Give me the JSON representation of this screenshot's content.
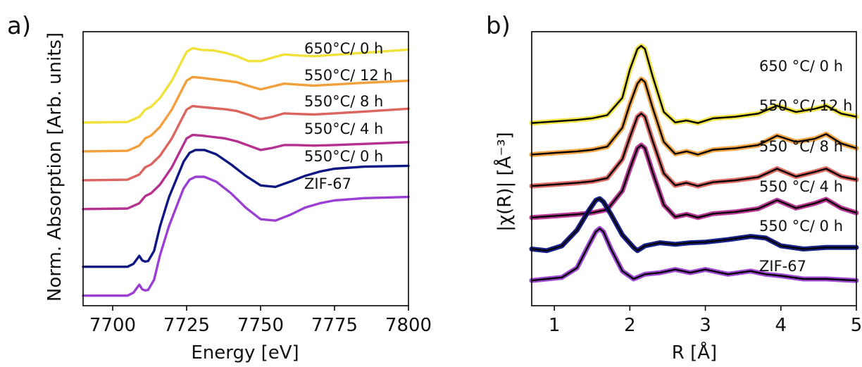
{
  "chart_data": [
    {
      "type": "line",
      "panel_label": "a)",
      "xlabel": "Energy [eV]",
      "ylabel": "Norm. Absorption [Arb. units]",
      "xlim": [
        7690,
        7800
      ],
      "x_ticks": [
        7700,
        7725,
        7750,
        7775,
        7800
      ],
      "y_ticks": [],
      "grid": false,
      "legend": "inline labels right of curves",
      "series": [
        {
          "name": "650°C/ 0 h",
          "color": "#f0e13b",
          "x": [
            7690,
            7705,
            7709,
            7711,
            7713,
            7716,
            7720,
            7723,
            7725,
            7727,
            7730,
            7734,
            7738,
            7742,
            7746,
            7750,
            7754,
            7758,
            7762,
            7768,
            7775,
            7785,
            7800
          ],
          "y": [
            5.0,
            5.02,
            5.2,
            5.45,
            5.55,
            5.85,
            6.45,
            7.05,
            7.45,
            7.58,
            7.52,
            7.5,
            7.42,
            7.3,
            7.13,
            7.13,
            7.25,
            7.36,
            7.33,
            7.3,
            7.35,
            7.42,
            7.53
          ]
        },
        {
          "name": "550°C/ 12 h",
          "color": "#f2a03b",
          "x": [
            7690,
            7705,
            7709,
            7711,
            7713,
            7716,
            7720,
            7723,
            7725,
            7727,
            7730,
            7734,
            7738,
            7742,
            7746,
            7750,
            7754,
            7758,
            7762,
            7768,
            7775,
            7785,
            7800
          ],
          "y": [
            4.0,
            4.02,
            4.2,
            4.45,
            4.55,
            4.85,
            5.45,
            6.05,
            6.45,
            6.58,
            6.55,
            6.5,
            6.45,
            6.4,
            6.27,
            6.15,
            6.25,
            6.35,
            6.32,
            6.28,
            6.32,
            6.38,
            6.45
          ]
        },
        {
          "name": "550°C/ 8 h",
          "color": "#dc6560",
          "x": [
            7690,
            7705,
            7709,
            7711,
            7713,
            7716,
            7720,
            7723,
            7725,
            7727,
            7730,
            7734,
            7738,
            7742,
            7746,
            7750,
            7754,
            7758,
            7762,
            7768,
            7775,
            7785,
            7800
          ],
          "y": [
            3.0,
            3.02,
            3.2,
            3.45,
            3.55,
            3.85,
            4.45,
            5.05,
            5.45,
            5.57,
            5.54,
            5.5,
            5.46,
            5.4,
            5.27,
            5.12,
            5.2,
            5.32,
            5.3,
            5.28,
            5.32,
            5.38,
            5.48
          ]
        },
        {
          "name": "550°C/ 4 h",
          "color": "#b5308f",
          "x": [
            7690,
            7705,
            7709,
            7711,
            7713,
            7716,
            7720,
            7723,
            7725,
            7727,
            7730,
            7734,
            7738,
            7742,
            7746,
            7750,
            7754,
            7758,
            7762,
            7768,
            7775,
            7785,
            7800
          ],
          "y": [
            2.0,
            2.02,
            2.2,
            2.45,
            2.55,
            2.85,
            3.45,
            4.05,
            4.45,
            4.57,
            4.55,
            4.5,
            4.45,
            4.35,
            4.2,
            4.05,
            4.12,
            4.22,
            4.22,
            4.2,
            4.22,
            4.26,
            4.32
          ]
        },
        {
          "name": "550°C/ 0 h",
          "color": "#0d1682",
          "x": [
            7690,
            7705,
            7707,
            7709,
            7710,
            7711,
            7712,
            7714,
            7716,
            7719,
            7722,
            7724,
            7726,
            7728,
            7731,
            7735,
            7740,
            7745,
            7750,
            7755,
            7760,
            7765,
            7770,
            7775,
            7785,
            7800
          ],
          "y": [
            0.0,
            0.0,
            0.1,
            0.38,
            0.22,
            0.18,
            0.2,
            0.55,
            1.4,
            2.4,
            3.15,
            3.65,
            3.95,
            4.05,
            4.05,
            3.9,
            3.55,
            3.15,
            2.82,
            2.77,
            2.95,
            3.15,
            3.3,
            3.4,
            3.47,
            3.5
          ]
        },
        {
          "name": "ZIF-67",
          "color": "#9a3fd1",
          "x": [
            7690,
            7705,
            7707,
            7709,
            7710,
            7711,
            7712,
            7714,
            7716,
            7719,
            7722,
            7724,
            7726,
            7728,
            7731,
            7735,
            7740,
            7745,
            7750,
            7755,
            7760,
            7765,
            7770,
            7775,
            7785,
            7800
          ],
          "y": [
            -1.0,
            -1.0,
            -0.9,
            -0.62,
            -0.78,
            -0.82,
            -0.8,
            -0.45,
            0.4,
            1.4,
            2.2,
            2.72,
            3.02,
            3.12,
            3.12,
            2.95,
            2.55,
            2.05,
            1.65,
            1.6,
            1.8,
            2.05,
            2.2,
            2.3,
            2.38,
            2.42
          ]
        }
      ]
    },
    {
      "type": "line",
      "panel_label": "b)",
      "xlabel": "R [Å]",
      "ylabel": "|χ(R)| [Å⁻³]",
      "xlim": [
        0.7,
        5
      ],
      "x_ticks": [
        1,
        2,
        3,
        4,
        5
      ],
      "y_ticks": [],
      "grid": false,
      "legend": "inline labels above curves",
      "fit_color": "#000000",
      "series": [
        {
          "name": "650 °C/ 0 h",
          "color": "#f0e13b",
          "x": [
            0.7,
            1.0,
            1.3,
            1.5,
            1.7,
            1.9,
            2.0,
            2.1,
            2.15,
            2.2,
            2.3,
            2.45,
            2.6,
            2.75,
            2.9,
            3.1,
            3.4,
            3.7,
            3.95,
            4.2,
            4.45,
            4.6,
            4.8,
            5.0
          ],
          "y": [
            5.0,
            5.05,
            5.1,
            5.15,
            5.25,
            5.8,
            6.7,
            7.35,
            7.45,
            7.35,
            6.5,
            5.35,
            5.02,
            5.08,
            5.0,
            5.15,
            5.2,
            5.3,
            5.55,
            5.35,
            5.45,
            5.55,
            5.3,
            5.2
          ]
        },
        {
          "name": "550 °C/ 12 h",
          "color": "#f2a03b",
          "x": [
            0.7,
            1.0,
            1.3,
            1.5,
            1.7,
            1.9,
            2.0,
            2.1,
            2.15,
            2.2,
            2.3,
            2.45,
            2.6,
            2.75,
            2.9,
            3.1,
            3.4,
            3.7,
            3.95,
            4.2,
            4.45,
            4.6,
            4.8,
            5.0
          ],
          "y": [
            4.0,
            4.05,
            4.1,
            4.15,
            4.25,
            4.85,
            5.6,
            6.25,
            6.4,
            6.3,
            5.5,
            4.4,
            4.02,
            4.1,
            4.0,
            4.15,
            4.2,
            4.3,
            4.6,
            4.4,
            4.5,
            4.65,
            4.35,
            4.2
          ]
        },
        {
          "name": "550 °C/ 8 h",
          "color": "#dc6560",
          "x": [
            0.7,
            1.0,
            1.3,
            1.5,
            1.7,
            1.9,
            2.0,
            2.1,
            2.15,
            2.2,
            2.3,
            2.45,
            2.6,
            2.75,
            2.9,
            3.1,
            3.4,
            3.7,
            3.95,
            4.2,
            4.45,
            4.6,
            4.8,
            5.0
          ],
          "y": [
            3.0,
            3.05,
            3.1,
            3.15,
            3.25,
            3.85,
            4.55,
            5.2,
            5.3,
            5.2,
            4.45,
            3.4,
            3.02,
            3.1,
            3.0,
            3.12,
            3.18,
            3.28,
            3.55,
            3.3,
            3.45,
            3.55,
            3.3,
            3.2
          ]
        },
        {
          "name": "550 °C/ 4 h",
          "color": "#b5308f",
          "x": [
            0.7,
            1.0,
            1.3,
            1.5,
            1.7,
            1.9,
            2.0,
            2.1,
            2.15,
            2.2,
            2.3,
            2.45,
            2.6,
            2.75,
            2.9,
            3.1,
            3.4,
            3.7,
            3.95,
            4.2,
            4.45,
            4.6,
            4.8,
            5.0
          ],
          "y": [
            2.0,
            2.05,
            2.1,
            2.15,
            2.25,
            2.85,
            3.55,
            4.2,
            4.3,
            4.2,
            3.45,
            2.4,
            2.02,
            2.1,
            2.0,
            2.12,
            2.18,
            2.28,
            2.55,
            2.3,
            2.45,
            2.58,
            2.3,
            2.15
          ]
        },
        {
          "name": "550 °C/ 0 h",
          "color": "#0d1682",
          "x": [
            0.7,
            0.9,
            1.1,
            1.3,
            1.45,
            1.55,
            1.6,
            1.65,
            1.75,
            1.9,
            2.05,
            2.1,
            2.2,
            2.4,
            2.6,
            2.8,
            3.0,
            3.3,
            3.6,
            3.8,
            4.0,
            4.3,
            4.6,
            5.0
          ],
          "y": [
            1.0,
            0.95,
            1.1,
            1.6,
            2.2,
            2.55,
            2.6,
            2.5,
            2.1,
            1.45,
            1.05,
            0.95,
            1.1,
            1.2,
            1.15,
            1.2,
            1.22,
            1.3,
            1.4,
            1.35,
            1.1,
            1.0,
            1.05,
            1.05
          ]
        },
        {
          "name": "ZIF-67",
          "color": "#9a3fd1",
          "x": [
            0.7,
            0.9,
            1.1,
            1.3,
            1.45,
            1.55,
            1.6,
            1.65,
            1.75,
            1.9,
            2.05,
            2.2,
            2.4,
            2.6,
            2.8,
            3.0,
            3.3,
            3.6,
            3.8,
            4.0,
            4.3,
            4.6,
            5.0
          ],
          "y": [
            0.0,
            0.05,
            0.1,
            0.4,
            1.1,
            1.55,
            1.65,
            1.55,
            1.0,
            0.3,
            0.05,
            0.2,
            0.25,
            0.35,
            0.25,
            0.35,
            0.2,
            0.3,
            0.2,
            0.15,
            0.05,
            0.05,
            0.0
          ]
        }
      ]
    }
  ]
}
